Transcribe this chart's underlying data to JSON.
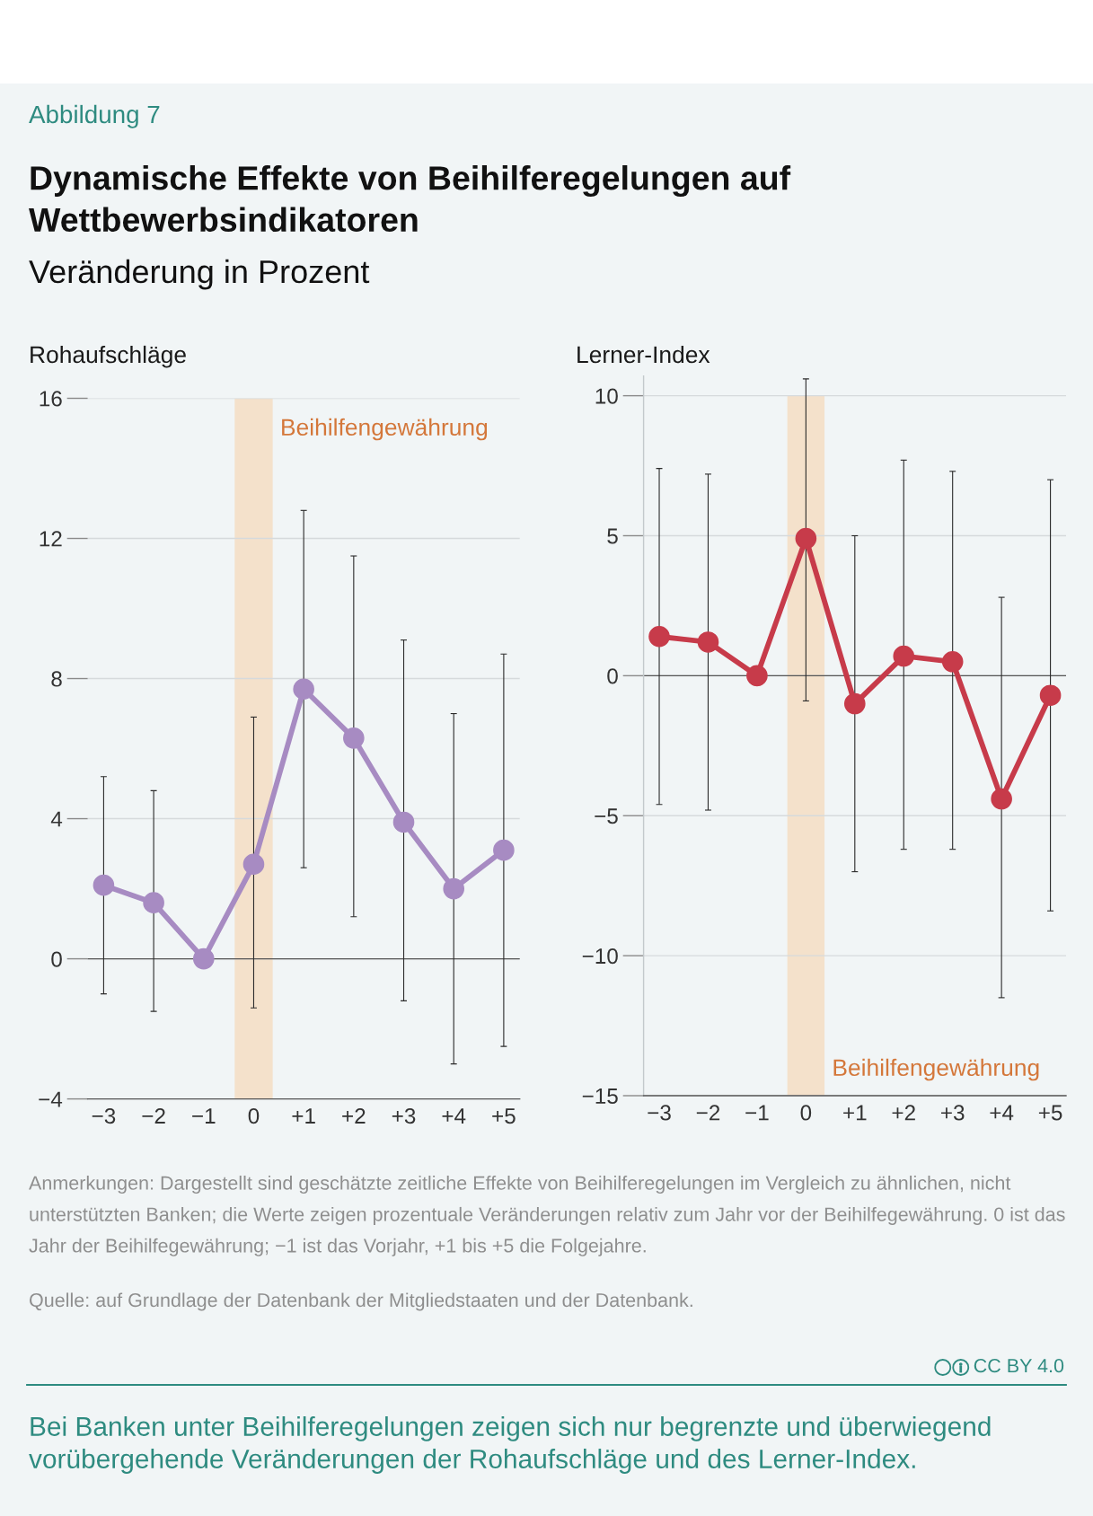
{
  "chart_data": [
    {
      "type": "other",
      "title": "Dynamische Effekte von Beihilferegelungen auf Wettbewerbsindikatoren",
      "subtitle": "Veränderung in Prozent",
      "annotations": [
        "Abbildung 7"
      ]
    },
    {
      "type": "line",
      "title": "Rohaufschläge",
      "categories": [
        "−3",
        "−2",
        "−1",
        "0",
        "+1",
        "+2",
        "+3",
        "+4",
        "+5"
      ],
      "series": [
        {
          "color": "#a78bc2",
          "values": [
            2.1,
            1.6,
            0,
            2.7,
            7.7,
            6.3,
            3.9,
            2.0,
            3.1
          ],
          "errors": [
            [
              -1.0,
              5.2
            ],
            [
              -1.5,
              4.8
            ],
            null,
            [
              -1.4,
              6.9
            ],
            [
              2.6,
              12.8
            ],
            [
              1.2,
              11.5
            ],
            [
              -1.2,
              9.1
            ],
            [
              -3.0,
              7.0
            ],
            [
              -2.5,
              8.7
            ]
          ]
        }
      ],
      "ylim": [
        -4,
        16
      ],
      "yticks": [
        {
          "value": -4,
          "label": "−4"
        },
        0,
        4,
        8,
        12,
        16
      ],
      "grid": "y",
      "marker": "circle",
      "line_style": "solid",
      "ref_lines": [
        {
          "axis": "y",
          "value": 0,
          "color": "#555555"
        }
      ],
      "bands": [
        {
          "axis": "x",
          "from": "0",
          "to": "0",
          "label": "Beihilfengewährung",
          "color": "#f4e1cb"
        }
      ]
    },
    {
      "type": "line",
      "title": "Lerner-Index",
      "categories": [
        "−3",
        "−2",
        "−1",
        "0",
        "+1",
        "+2",
        "+3",
        "+4",
        "+5"
      ],
      "series": [
        {
          "color": "#c73b4a",
          "values": [
            1.4,
            1.2,
            0,
            4.9,
            -1.0,
            0.7,
            0.5,
            -4.4,
            -0.7
          ],
          "errors": [
            [
              -4.6,
              7.4
            ],
            [
              -4.8,
              7.2
            ],
            null,
            [
              -0.9,
              10.6
            ],
            [
              -7.0,
              5.0
            ],
            [
              -6.2,
              7.7
            ],
            [
              -6.2,
              7.3
            ],
            [
              -11.5,
              2.8
            ],
            [
              -8.4,
              7.0
            ]
          ]
        }
      ],
      "ylim": [
        -15,
        10.7
      ],
      "yticks": [
        {
          "value": -15,
          "label": "−15"
        },
        {
          "value": -10,
          "label": "−10"
        },
        {
          "value": -5,
          "label": "−5"
        },
        0,
        5,
        10
      ],
      "grid": "y",
      "marker": "circle",
      "line_style": "solid",
      "ref_lines": [
        {
          "axis": "y",
          "value": 0,
          "color": "#555555"
        }
      ],
      "bands": [
        {
          "axis": "x",
          "from": "0",
          "to": "0",
          "label": "Beihilfengewährung",
          "color": "#f4e1cb"
        }
      ]
    },
    {
      "type": "other",
      "annotations": [
        "Anmerkungen: Dargestellt sind geschätzte zeitliche Effekte von Beihilferegelungen im Vergleich zu ähnlichen, nicht unterstützten Banken; die Werte zeigen prozentuale Veränderungen relativ zum Jahr vor der Beihilfegewährung. 0 ist das Jahr der Beihilfegewährung; −1 ist das Vorjahr, +1 bis +5 die Folgejahre.",
        "Quelle: auf Grundlage der Datenbank der Mitgliedstaaten und der Datenbank.",
        "CC BY 4.0",
        "Bei Banken unter Beihilferegelungen zeigen sich nur begrenzte und überwiegend vorübergehende Veränderungen der Rohaufschläge und des Lerner-Index."
      ]
    }
  ]
}
